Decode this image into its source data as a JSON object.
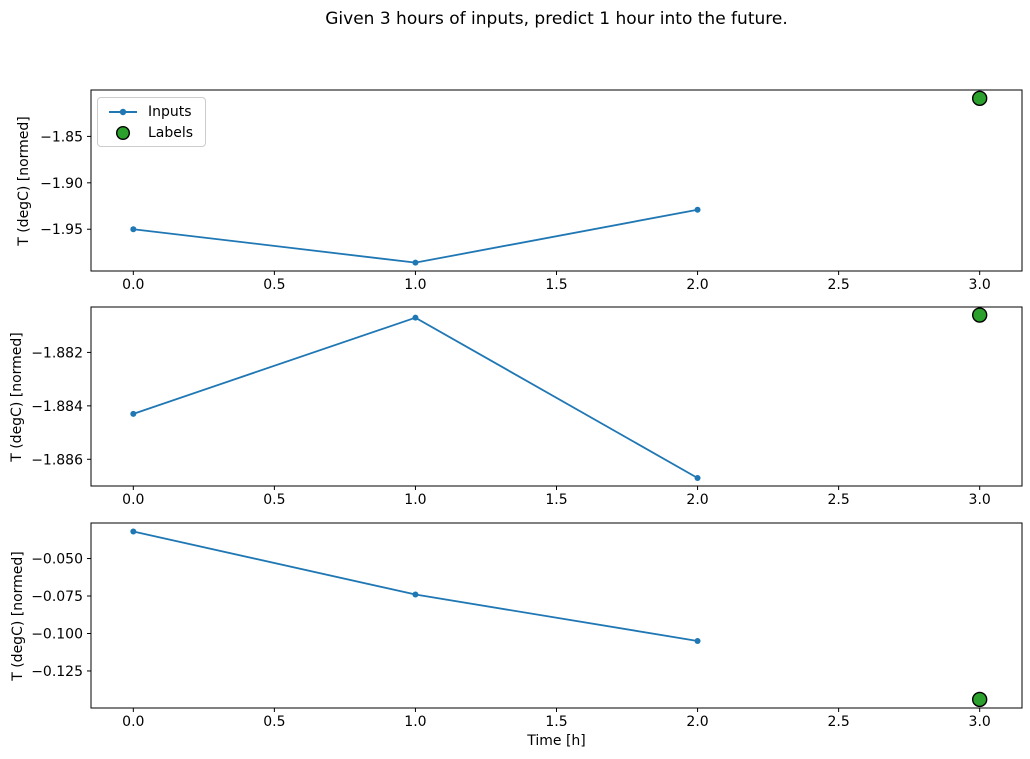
{
  "figure": {
    "title": "Given 3 hours of inputs, predict 1 hour into the future."
  },
  "colors": {
    "inputs_line": "#1f77b4",
    "labels_fill": "#2ca02c",
    "labels_edge": "#000000",
    "spine": "#000000",
    "text": "#000000",
    "legend_border": "#cccccc",
    "background": "#ffffff"
  },
  "legend": {
    "position": "upper left",
    "items": [
      {
        "label": "Inputs",
        "marker": "line-with-dot"
      },
      {
        "label": "Labels",
        "marker": "filled-circle"
      }
    ]
  },
  "chart_data": [
    {
      "type": "line",
      "subplot": "top",
      "ylabel": "T (degC) [normed]",
      "xlabel": "",
      "series": [
        {
          "name": "Inputs",
          "x": [
            0,
            1,
            2
          ],
          "values": [
            -1.95,
            -1.986,
            -1.929
          ],
          "marker": "point"
        }
      ],
      "labels_point": {
        "name": "Labels",
        "x": 3,
        "y": -1.809
      },
      "xlim": [
        -0.15,
        3.15
      ],
      "ylim": [
        -1.995,
        -1.8
      ],
      "xticks": [
        0,
        0.5,
        1,
        1.5,
        2,
        2.5,
        3
      ],
      "xtick_labels": [
        "0.0",
        "0.5",
        "1.0",
        "1.5",
        "2.0",
        "2.5",
        "3.0"
      ],
      "yticks": [
        -1.85,
        -1.9,
        -1.95
      ],
      "ytick_labels": [
        "−1.85",
        "−1.90",
        "−1.95"
      ],
      "grid": false,
      "legend_shown": true
    },
    {
      "type": "line",
      "subplot": "middle",
      "ylabel": "T (degC) [normed]",
      "xlabel": "",
      "series": [
        {
          "name": "Inputs",
          "x": [
            0,
            1,
            2
          ],
          "values": [
            -1.8843,
            -1.8807,
            -1.8867
          ],
          "marker": "point"
        }
      ],
      "labels_point": {
        "name": "Labels",
        "x": 3,
        "y": -1.8806
      },
      "xlim": [
        -0.15,
        3.15
      ],
      "ylim": [
        -1.887,
        -1.8803
      ],
      "xticks": [
        0,
        0.5,
        1,
        1.5,
        2,
        2.5,
        3
      ],
      "xtick_labels": [
        "0.0",
        "0.5",
        "1.0",
        "1.5",
        "2.0",
        "2.5",
        "3.0"
      ],
      "yticks": [
        -1.882,
        -1.884,
        -1.886
      ],
      "ytick_labels": [
        "−1.882",
        "−1.884",
        "−1.886"
      ],
      "grid": false,
      "legend_shown": false
    },
    {
      "type": "line",
      "subplot": "bottom",
      "ylabel": "T (degC) [normed]",
      "xlabel": "Time [h]",
      "series": [
        {
          "name": "Inputs",
          "x": [
            0,
            1,
            2
          ],
          "values": [
            -0.032,
            -0.074,
            -0.105
          ],
          "marker": "point"
        }
      ],
      "labels_point": {
        "name": "Labels",
        "x": 3,
        "y": -0.144
      },
      "xlim": [
        -0.15,
        3.15
      ],
      "ylim": [
        -0.1497,
        -0.0263
      ],
      "xticks": [
        0,
        0.5,
        1,
        1.5,
        2,
        2.5,
        3
      ],
      "xtick_labels": [
        "0.0",
        "0.5",
        "1.0",
        "1.5",
        "2.0",
        "2.5",
        "3.0"
      ],
      "yticks": [
        -0.05,
        -0.075,
        -0.1,
        -0.125
      ],
      "ytick_labels": [
        "−0.050",
        "−0.075",
        "−0.100",
        "−0.125"
      ],
      "grid": false,
      "legend_shown": false
    }
  ]
}
